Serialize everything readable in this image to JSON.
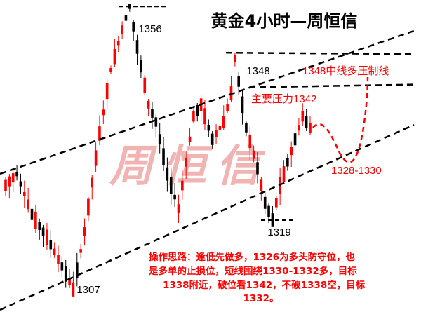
{
  "chart_data": {
    "type": "candlestick",
    "title": "黄金4小时—周恒信",
    "watermark": "周恒信",
    "y_range": [
      1300,
      1363
    ],
    "colors": {
      "up": "#ff0000",
      "down": "#000000",
      "channel": "#000000",
      "projection": "#ff0000",
      "annotation": "#ff0000",
      "watermark": "#f2b3b3"
    },
    "price_labels": [
      {
        "text": "1356",
        "value": 1356
      },
      {
        "text": "1348",
        "value": 1348
      },
      {
        "text": "1319",
        "value": 1319
      },
      {
        "text": "1307",
        "value": 1307
      }
    ],
    "level_labels": [
      {
        "text": "1348中线多压制线",
        "value": 1348
      },
      {
        "text": "主要压力1342",
        "value": 1342
      },
      {
        "text": "1328-1330",
        "value": 1329
      }
    ],
    "commentary": [
      "操作思路：逢低先做多，1326为多头防守位，也",
      "是多单的止损位，短线围绕1330-1332多，目标",
      "1338附近，破位看1342，不破1338空，目标",
      "1332。"
    ]
  }
}
